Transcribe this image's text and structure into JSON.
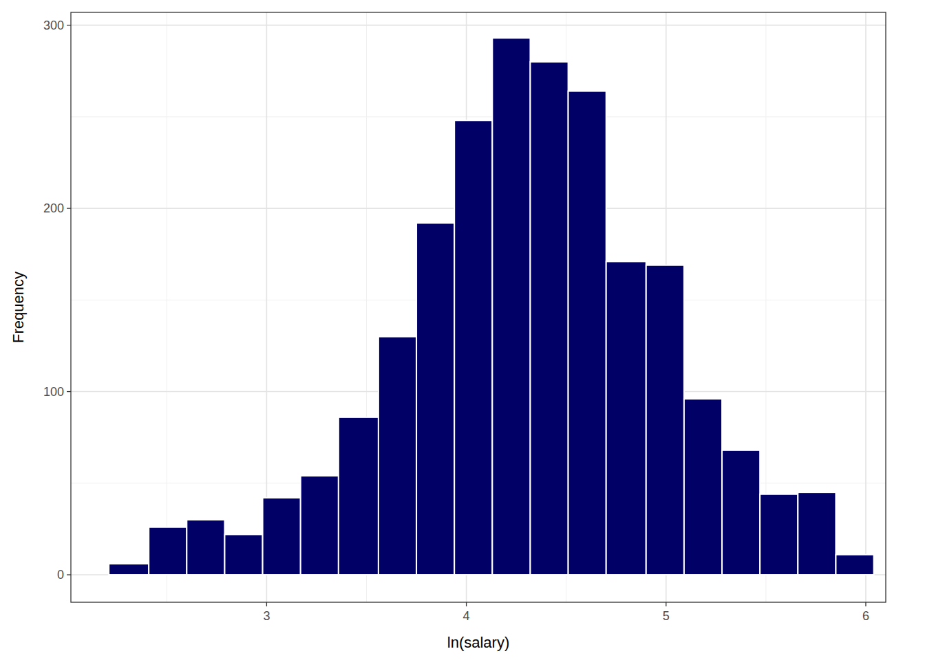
{
  "chart_data": {
    "type": "histogram",
    "x_label": "ln(salary)",
    "y_label": "Frequency",
    "bins": [
      2.21,
      2.41,
      2.6,
      2.79,
      2.98,
      3.17,
      3.36,
      3.56,
      3.75,
      3.94,
      4.13,
      4.32,
      4.51,
      4.7,
      4.9,
      5.09,
      5.28,
      5.47,
      5.66,
      5.85,
      6.04
    ],
    "values": [
      6,
      26,
      30,
      22,
      42,
      54,
      86,
      130,
      192,
      248,
      293,
      280,
      264,
      171,
      169,
      96,
      68,
      44,
      45,
      11
    ],
    "color": "#000066",
    "xlim": [
      2.02,
      6.1
    ],
    "ylim": [
      -15,
      307
    ],
    "xticks": [
      3,
      4,
      5,
      6
    ],
    "yticks": [
      0,
      100,
      200,
      300
    ],
    "grid": true
  }
}
